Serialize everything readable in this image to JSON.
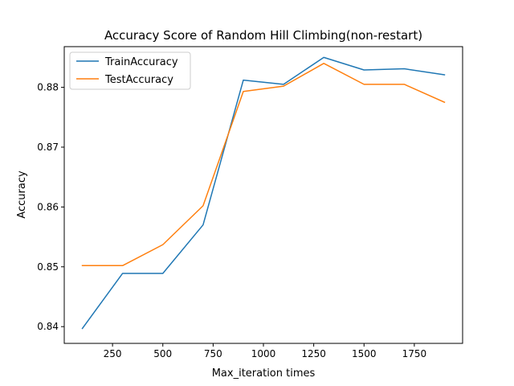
{
  "chart_data": {
    "type": "line",
    "title": "Accuracy Score of Random Hill Climbing(non-restart)",
    "xlabel": "Max_iteration times",
    "ylabel": "Accuracy",
    "x": [
      100,
      300,
      500,
      700,
      900,
      1100,
      1300,
      1500,
      1700,
      1900
    ],
    "xlim": [
      10,
      1990
    ],
    "ylim": [
      0.8372,
      0.8868
    ],
    "xticks": [
      250,
      500,
      750,
      1000,
      1250,
      1500,
      1750
    ],
    "yticks": [
      0.84,
      0.85,
      0.86,
      0.87,
      0.88
    ],
    "xtick_labels": [
      "250",
      "500",
      "750",
      "1000",
      "1250",
      "1500",
      "1750"
    ],
    "ytick_labels": [
      "0.84",
      "0.85",
      "0.86",
      "0.87",
      "0.88"
    ],
    "grid": false,
    "legend": "top-left",
    "series": [
      {
        "name": "TrainAccuracy",
        "color": "#1f77b4",
        "values": [
          0.8397,
          0.8489,
          0.8489,
          0.857,
          0.8812,
          0.8805,
          0.885,
          0.8829,
          0.8831,
          0.8821
        ]
      },
      {
        "name": "TestAccuracy",
        "color": "#ff7f0e",
        "values": [
          0.8502,
          0.8502,
          0.8537,
          0.8602,
          0.8793,
          0.8802,
          0.884,
          0.8805,
          0.8805,
          0.8775
        ]
      }
    ]
  }
}
